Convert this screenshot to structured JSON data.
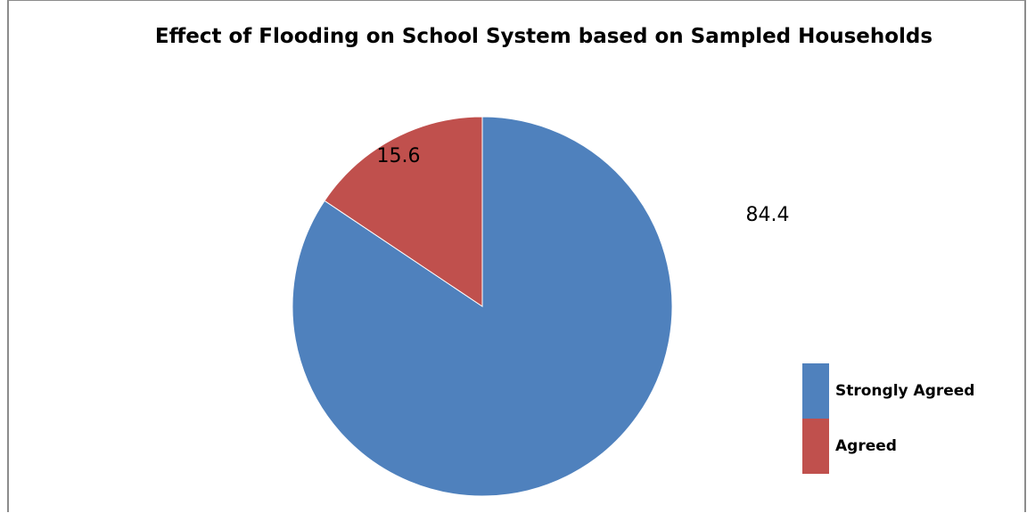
{
  "chart_data": {
    "type": "pie",
    "title": "Effect of Flooding on School System based on Sampled Households",
    "series": [
      {
        "name": "Strongly Agreed",
        "value": 84.4,
        "label": "84.4",
        "color": "#4f81bd"
      },
      {
        "name": "Agreed",
        "value": 15.6,
        "label": "15.6",
        "color": "#c0504d"
      }
    ],
    "legend_position": "bottom-right"
  }
}
